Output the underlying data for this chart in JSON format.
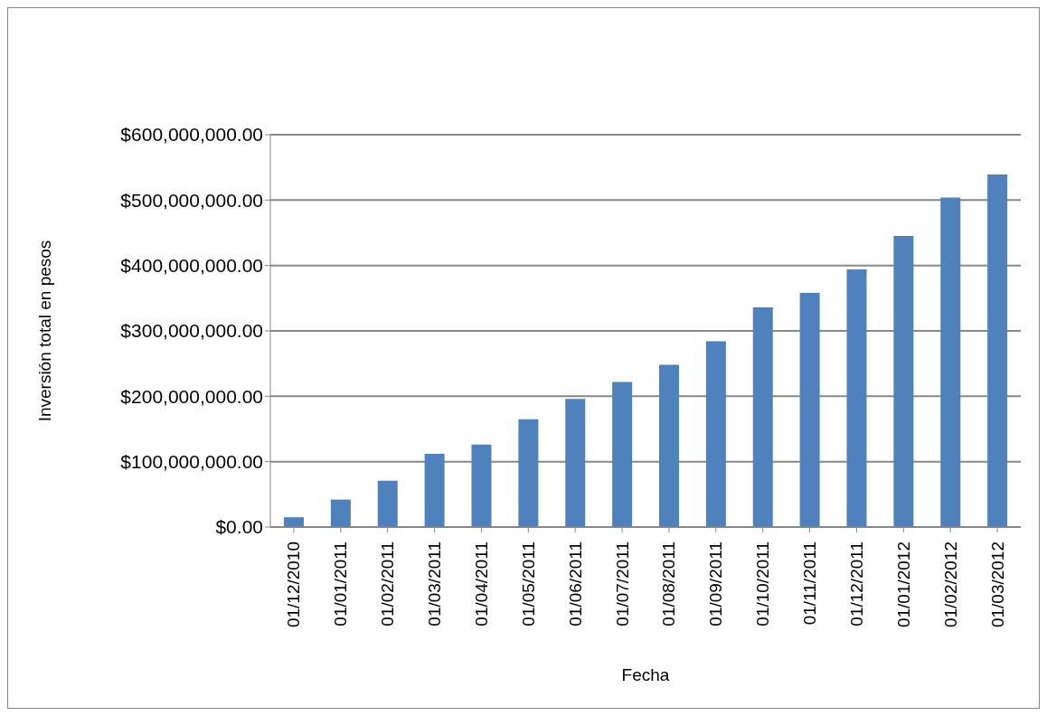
{
  "chart_data": {
    "type": "bar",
    "xlabel": "Fecha",
    "ylabel": "Inversión total en pesos",
    "categories": [
      "01/12/2010",
      "01/01/2011",
      "01/02/2011",
      "01/03/2011",
      "01/04/2011",
      "01/05/2011",
      "01/06/2011",
      "01/07/2011",
      "01/08/2011",
      "01/09/2011",
      "01/10/2011",
      "01/11/2011",
      "01/12/2011",
      "01/01/2012",
      "01/02/2012",
      "01/03/2012"
    ],
    "values": [
      15000000,
      42000000,
      71000000,
      112000000,
      126000000,
      165000000,
      196000000,
      222000000,
      248000000,
      284000000,
      336000000,
      358000000,
      394000000,
      445000000,
      504000000,
      539000000
    ],
    "color": "#4f81bd",
    "ylim": [
      0,
      600000000
    ],
    "yticks": [
      {
        "value": 0,
        "label": "$0.00"
      },
      {
        "value": 100000000,
        "label": "$100,000,000.00"
      },
      {
        "value": 200000000,
        "label": "$200,000,000.00"
      },
      {
        "value": 300000000,
        "label": "$300,000,000.00"
      },
      {
        "value": 400000000,
        "label": "$400,000,000.00"
      },
      {
        "value": 500000000,
        "label": "$500,000,000.00"
      },
      {
        "value": 600000000,
        "label": "$600,000,000.00"
      }
    ],
    "grid": "y",
    "legend": false
  }
}
